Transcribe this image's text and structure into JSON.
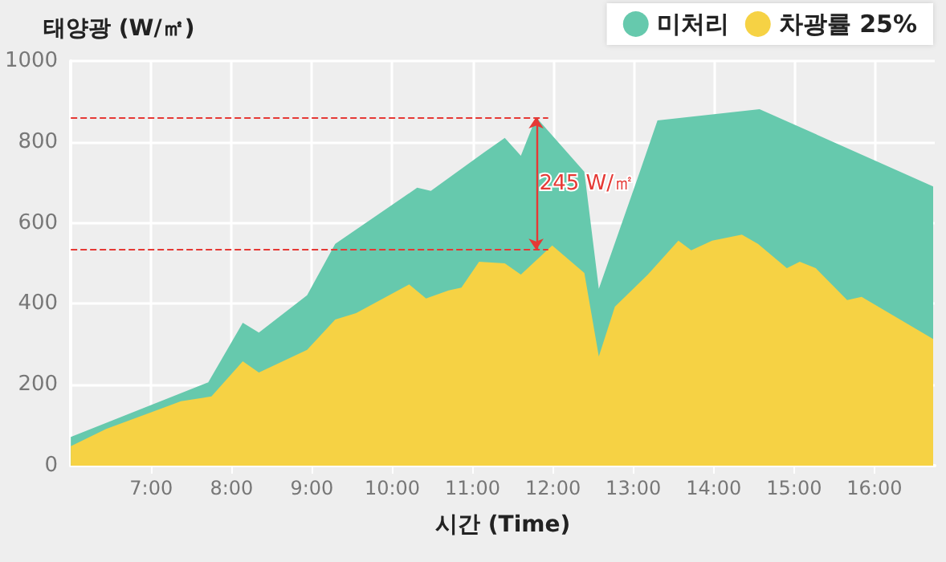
{
  "chart_data": {
    "type": "area",
    "ylabel": "태양광 (W/㎡)",
    "xlabel": "시간 (Time)",
    "xlim": [
      6,
      16.75
    ],
    "ylim": [
      0,
      1000
    ],
    "xticks": [
      {
        "value": 7,
        "label": "7:00"
      },
      {
        "value": 8,
        "label": "8:00"
      },
      {
        "value": 9,
        "label": "9:00"
      },
      {
        "value": 10,
        "label": "10:00"
      },
      {
        "value": 11,
        "label": "11:00"
      },
      {
        "value": 12,
        "label": "12:00"
      },
      {
        "value": 13,
        "label": "13:00"
      },
      {
        "value": 14,
        "label": "14:00"
      },
      {
        "value": 15,
        "label": "15:00"
      },
      {
        "value": 16,
        "label": "16:00"
      }
    ],
    "yticks": [
      0,
      200,
      400,
      600,
      800,
      1000
    ],
    "grid": true,
    "legend": "top right",
    "marker": "none",
    "series": [
      {
        "name": "미처리",
        "color": "#66c9ad",
        "x": [
          6.0,
          7.71,
          8.14,
          8.34,
          8.94,
          9.29,
          10.31,
          10.48,
          11.14,
          11.4,
          11.6,
          11.79,
          12.39,
          12.57,
          13.08,
          13.3,
          14.57,
          16.73
        ],
        "values": [
          71,
          206,
          353,
          329,
          421,
          548,
          687,
          679,
          774,
          810,
          766,
          861,
          726,
          437,
          726,
          853,
          881,
          690
        ]
      },
      {
        "name": "차광률 25%",
        "color": "#f6d244",
        "x": [
          6.0,
          6.44,
          7.37,
          7.75,
          8.14,
          8.34,
          8.94,
          9.29,
          9.55,
          10.21,
          10.42,
          10.7,
          10.86,
          11.08,
          11.4,
          11.6,
          11.99,
          12.39,
          12.57,
          12.77,
          13.18,
          13.56,
          13.72,
          13.98,
          14.35,
          14.55,
          14.91,
          15.07,
          15.27,
          15.66,
          15.84,
          16.73
        ],
        "values": [
          48,
          91,
          159,
          171,
          258,
          230,
          286,
          361,
          377,
          448,
          413,
          433,
          440,
          504,
          500,
          472,
          544,
          476,
          270,
          393,
          472,
          556,
          532,
          556,
          571,
          548,
          488,
          504,
          488,
          409,
          417,
          313
        ]
      }
    ],
    "ref_lines": [
      {
        "axis": "y",
        "value": 861,
        "color": "#e53935",
        "line_style": "dashed"
      },
      {
        "axis": "y",
        "value": 533,
        "color": "#e53935",
        "line_style": "dashed"
      }
    ],
    "annotations": [
      "245 W/㎡"
    ]
  }
}
